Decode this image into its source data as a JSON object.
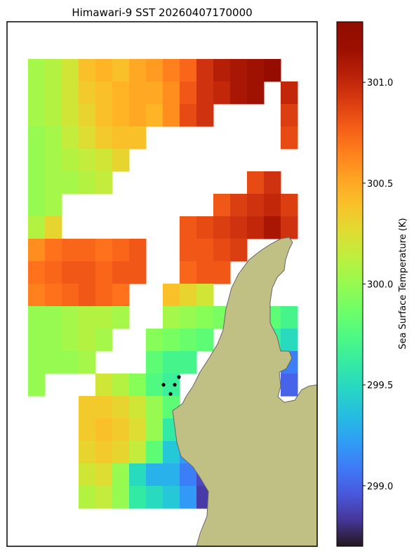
{
  "chart_data": {
    "type": "heatmap",
    "title": "Himawari-9 SST 20260407170000",
    "colorbar_label": "Sea Surface Temperature (K)",
    "colormap": "turbo",
    "clim": [
      298.7,
      301.3
    ],
    "cticks": [
      {
        "value": 299,
        "label": "299.0"
      },
      {
        "value": 299.5,
        "label": "299.5"
      },
      {
        "value": 300,
        "label": "300.0"
      },
      {
        "value": 300.5,
        "label": "300.5"
      },
      {
        "value": 301,
        "label": "301.0"
      }
    ],
    "z": [
      [
        300.05,
        300.1,
        300.2,
        300.4,
        300.45,
        300.4,
        300.5,
        300.55,
        300.65,
        300.75,
        300.95,
        301.05,
        301.1,
        301.15,
        301.2,
        null
      ],
      [
        300.05,
        300.1,
        300.2,
        300.35,
        300.4,
        300.45,
        300.5,
        300.5,
        300.6,
        300.8,
        300.95,
        301.0,
        301.1,
        301.15,
        null,
        301.0
      ],
      [
        300.05,
        300.1,
        300.2,
        300.3,
        300.4,
        300.45,
        300.5,
        300.45,
        300.6,
        300.85,
        300.95,
        null,
        null,
        null,
        null,
        300.9
      ],
      [
        300.0,
        300.05,
        300.15,
        300.25,
        300.35,
        300.4,
        300.4,
        null,
        null,
        null,
        null,
        null,
        null,
        null,
        null,
        300.85
      ],
      [
        300.0,
        300.05,
        300.1,
        300.15,
        300.2,
        300.3,
        null,
        null,
        null,
        null,
        null,
        null,
        null,
        null,
        null,
        null
      ],
      [
        300.0,
        300.05,
        300.05,
        300.1,
        300.15,
        null,
        null,
        null,
        null,
        null,
        null,
        null,
        null,
        300.85,
        300.95,
        null
      ],
      [
        300.0,
        300.05,
        null,
        null,
        null,
        null,
        null,
        null,
        null,
        null,
        null,
        300.8,
        300.9,
        300.95,
        301.0,
        300.9
      ],
      [
        300.1,
        300.3,
        null,
        null,
        null,
        null,
        null,
        null,
        null,
        300.8,
        300.85,
        300.9,
        300.95,
        301.0,
        301.1,
        300.95
      ],
      [
        300.6,
        300.7,
        300.75,
        300.75,
        300.7,
        300.75,
        300.8,
        null,
        null,
        300.8,
        300.8,
        300.85,
        300.9,
        null,
        null,
        null
      ],
      [
        300.7,
        300.75,
        300.8,
        300.8,
        300.75,
        300.8,
        300.8,
        null,
        null,
        300.75,
        300.8,
        300.8,
        null,
        null,
        null,
        null
      ],
      [
        300.65,
        300.7,
        300.75,
        300.8,
        300.75,
        300.7,
        null,
        null,
        300.4,
        300.3,
        300.2,
        null,
        null,
        null,
        null,
        null
      ],
      [
        300.0,
        300.0,
        300.05,
        300.1,
        300.1,
        300.05,
        null,
        null,
        300.05,
        300.0,
        299.95,
        299.9,
        null,
        null,
        299.8,
        299.7
      ],
      [
        300.0,
        300.0,
        300.05,
        300.1,
        300.05,
        null,
        null,
        299.95,
        299.9,
        299.85,
        299.8,
        null,
        null,
        null,
        299.65,
        299.5
      ],
      [
        300.0,
        300.0,
        300.0,
        300.05,
        null,
        null,
        null,
        299.8,
        299.7,
        299.7,
        null,
        null,
        null,
        null,
        null,
        299.1
      ],
      [
        300.0,
        null,
        null,
        null,
        300.2,
        300.1,
        299.95,
        299.75,
        299.65,
        null,
        null,
        null,
        null,
        null,
        null,
        299.0
      ],
      [
        null,
        null,
        null,
        300.35,
        300.35,
        300.3,
        300.2,
        300.0,
        299.8,
        null,
        null,
        null,
        null,
        null,
        null,
        null
      ],
      [
        null,
        null,
        null,
        300.35,
        300.4,
        300.35,
        300.25,
        300.0,
        299.6,
        null,
        null,
        null,
        null,
        null,
        null,
        null
      ],
      [
        null,
        null,
        null,
        300.3,
        300.35,
        300.3,
        300.15,
        299.8,
        299.4,
        299.2,
        null,
        null,
        null,
        null,
        null,
        null
      ],
      [
        null,
        null,
        null,
        300.2,
        300.25,
        300.0,
        299.5,
        299.3,
        299.3,
        299.1,
        298.9,
        null,
        null,
        null,
        null,
        null
      ],
      [
        null,
        null,
        null,
        300.1,
        300.15,
        300.0,
        299.6,
        299.5,
        299.4,
        299.2,
        298.85,
        null,
        null,
        null,
        null,
        null
      ]
    ]
  }
}
